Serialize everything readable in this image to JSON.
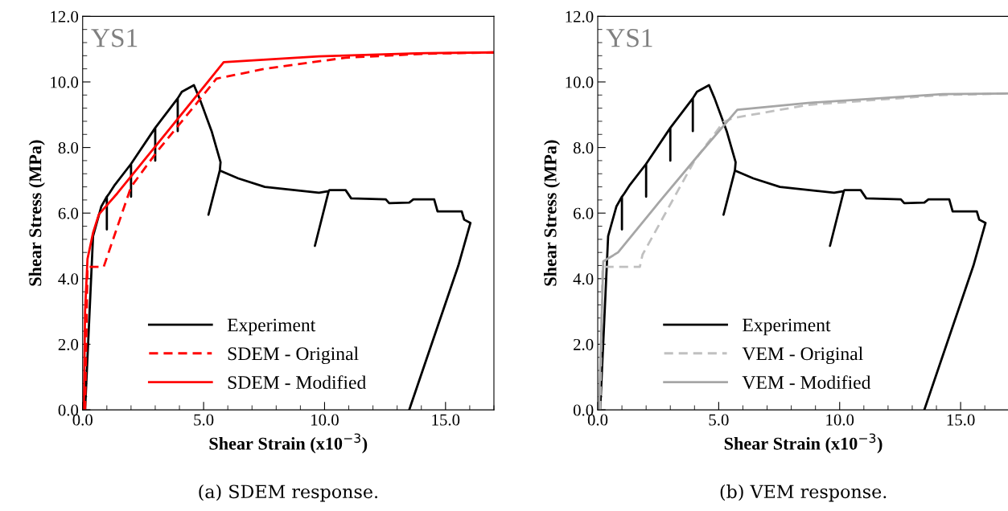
{
  "chart_data": [
    {
      "type": "line",
      "xlabel": "Shear Strain (x10$^{−3}$)",
      "ylabel": "Shear Stress (MPa)",
      "xlim": [
        0,
        17
      ],
      "ylim": [
        0,
        12
      ],
      "xticks": [
        {
          "value": 0,
          "label": "0.0"
        },
        {
          "value": 5,
          "label": "5.0"
        },
        {
          "value": 10,
          "label": "10.0"
        },
        {
          "value": 15,
          "label": "15.0"
        }
      ],
      "yticks": [
        {
          "value": 0,
          "label": "0.0"
        },
        {
          "value": 2,
          "label": "2.0"
        },
        {
          "value": 4,
          "label": "4.0"
        },
        {
          "value": 6,
          "label": "6.0"
        },
        {
          "value": 8,
          "label": "8.0"
        },
        {
          "value": 10,
          "label": "10.0"
        },
        {
          "value": 12,
          "label": "12.0"
        }
      ],
      "grid": false,
      "legend": "bottom left",
      "annotations": [
        "YS1",
        "(a) SDEM response."
      ],
      "series": [
        {
          "name": "Experiment",
          "color": "#000000",
          "line_style": "solid",
          "x": [
            0.1,
            0.43,
            0.77,
            1.0,
            1.0,
            1.0,
            1.1,
            1.33,
            2.0,
            2.0,
            2.0,
            3.0,
            3.0,
            3.0,
            3.93,
            3.93,
            3.93,
            4.1,
            4.6,
            4.83,
            5.33,
            5.7,
            5.67,
            5.2,
            5.67,
            6.43,
            7.53,
            9.77,
            10.17,
            9.6,
            10.17,
            10.2,
            10.87,
            11.1,
            12.53,
            12.67,
            13.5,
            13.67,
            14.53,
            14.67,
            15.67,
            15.77,
            16.03,
            15.53,
            13.5
          ],
          "values": [
            0,
            5.3,
            6.2,
            6.5,
            5.5,
            6.5,
            6.6,
            6.86,
            7.5,
            6.5,
            7.5,
            8.6,
            7.6,
            8.6,
            9.5,
            8.5,
            9.5,
            9.7,
            9.9,
            9.5,
            8.5,
            7.55,
            7.3,
            5.95,
            7.3,
            7.06,
            6.8,
            6.62,
            6.67,
            5.0,
            6.67,
            6.7,
            6.7,
            6.45,
            6.42,
            6.3,
            6.32,
            6.42,
            6.42,
            6.05,
            6.05,
            5.8,
            5.7,
            4.4,
            0
          ]
        },
        {
          "name": "SDEM - Original",
          "color": "#ff0000",
          "line_style": "dashed",
          "x": [
            0.1,
            0.2,
            0.87,
            2.0,
            3.1,
            4.77,
            5.53,
            7.53,
            10.87,
            14.2,
            17
          ],
          "values": [
            0,
            4.36,
            4.36,
            6.8,
            7.9,
            9.4,
            10.1,
            10.4,
            10.74,
            10.86,
            10.9
          ]
        },
        {
          "name": "SDEM - Modified",
          "color": "#ff0000",
          "line_style": "solid",
          "x": [
            0.05,
            0.1,
            0.2,
            0.43,
            0.67,
            1.43,
            5.83,
            9.77,
            14.2,
            17
          ],
          "values": [
            0,
            3.0,
            4.6,
            5.4,
            5.96,
            6.6,
            10.6,
            10.78,
            10.88,
            10.9
          ]
        }
      ]
    },
    {
      "type": "line",
      "xlabel": "Shear Strain (x10$^{−3}$)",
      "ylabel": "Shear Stress (MPa)",
      "xlim": [
        0,
        17
      ],
      "ylim": [
        0,
        12
      ],
      "xticks": [
        {
          "value": 0,
          "label": "0.0"
        },
        {
          "value": 5,
          "label": "5.0"
        },
        {
          "value": 10,
          "label": "10.0"
        },
        {
          "value": 15,
          "label": "15.0"
        }
      ],
      "yticks": [
        {
          "value": 0,
          "label": "0.0"
        },
        {
          "value": 2,
          "label": "2.0"
        },
        {
          "value": 4,
          "label": "4.0"
        },
        {
          "value": 6,
          "label": "6.0"
        },
        {
          "value": 8,
          "label": "8.0"
        },
        {
          "value": 10,
          "label": "10.0"
        },
        {
          "value": 12,
          "label": "12.0"
        }
      ],
      "grid": false,
      "legend": "bottom left",
      "annotations": [
        "YS1",
        "(b) VEM response."
      ],
      "series": [
        {
          "name": "Experiment",
          "color": "#000000",
          "line_style": "solid",
          "x": [
            0.1,
            0.43,
            0.77,
            1.0,
            1.0,
            1.0,
            1.1,
            1.33,
            2.0,
            2.0,
            2.0,
            3.0,
            3.0,
            3.0,
            3.93,
            3.93,
            3.93,
            4.1,
            4.6,
            4.83,
            5.33,
            5.7,
            5.67,
            5.2,
            5.67,
            6.43,
            7.53,
            9.77,
            10.17,
            9.6,
            10.17,
            10.2,
            10.87,
            11.1,
            12.53,
            12.67,
            13.5,
            13.67,
            14.53,
            14.67,
            15.67,
            15.77,
            16.03,
            15.53,
            13.5
          ],
          "values": [
            0,
            5.3,
            6.2,
            6.5,
            5.5,
            6.5,
            6.6,
            6.86,
            7.5,
            6.5,
            7.5,
            8.6,
            7.6,
            8.6,
            9.5,
            8.5,
            9.5,
            9.7,
            9.9,
            9.5,
            8.5,
            7.55,
            7.3,
            5.95,
            7.3,
            7.06,
            6.8,
            6.62,
            6.67,
            5.0,
            6.67,
            6.7,
            6.7,
            6.45,
            6.42,
            6.3,
            6.32,
            6.42,
            6.42,
            6.05,
            6.05,
            5.8,
            5.7,
            4.4,
            0
          ]
        },
        {
          "name": "VEM - Original",
          "color": "#c0c0c0",
          "line_style": "dashed",
          "x": [
            0.1,
            0.2,
            1.74,
            1.85,
            4.0,
            5.2,
            5.6,
            8.7,
            14.26,
            17
          ],
          "values": [
            0,
            4.36,
            4.36,
            4.73,
            7.6,
            8.78,
            8.9,
            9.3,
            9.6,
            9.65
          ]
        },
        {
          "name": "VEM - Modified",
          "color": "#a6a6a6",
          "line_style": "solid",
          "x": [
            0.05,
            0.23,
            0.84,
            2.5,
            4.2,
            5.77,
            8.7,
            14.26,
            17
          ],
          "values": [
            0,
            4.53,
            4.8,
            6.3,
            7.8,
            9.15,
            9.36,
            9.63,
            9.65
          ]
        }
      ]
    }
  ]
}
